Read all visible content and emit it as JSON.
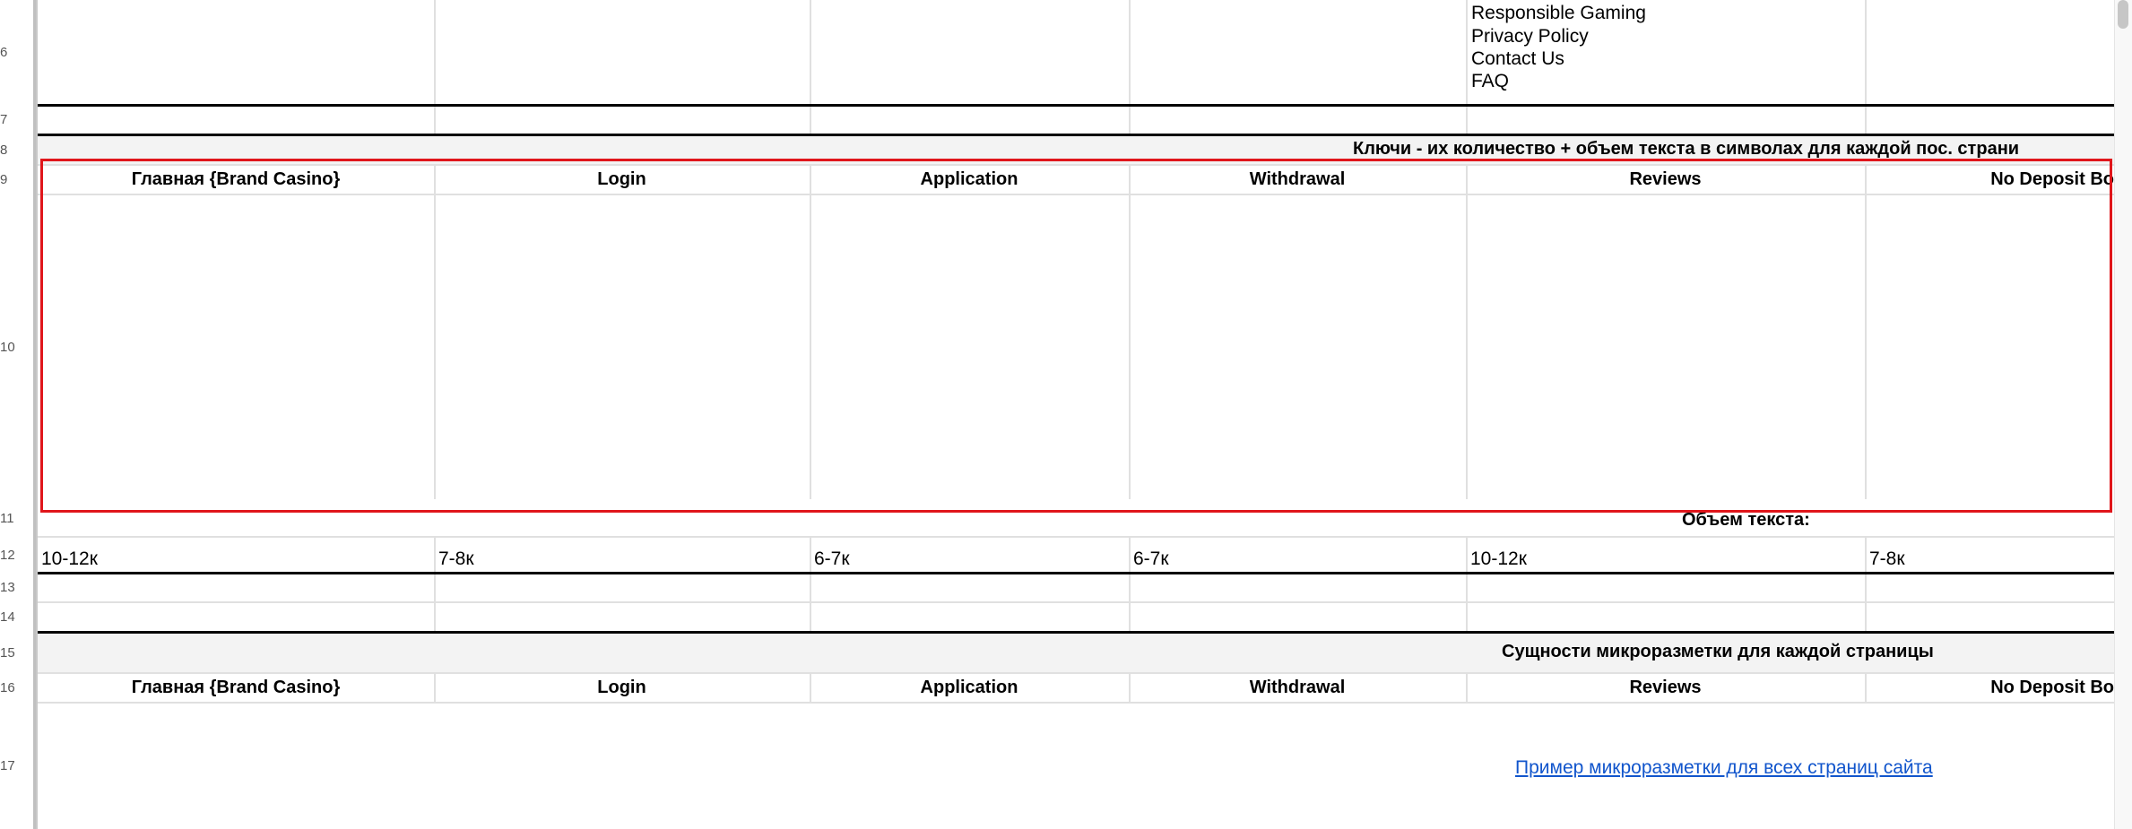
{
  "row_numbers": [
    "6",
    "7",
    "8",
    "9",
    "10",
    "11",
    "12",
    "13",
    "14",
    "15",
    "16",
    "17"
  ],
  "footer_links": [
    "Responsible Gaming",
    "Privacy Policy",
    "Contact Us",
    "FAQ"
  ],
  "section_keys_title": "Ключи - их количество  + объем текста в символах для каждой пос. страни",
  "pages": [
    "Главная {Brand Casino}",
    "Login",
    "Application",
    "Withdrawal",
    "Reviews",
    "No Deposit Bo"
  ],
  "text_volume_label": "Объем текста:",
  "text_volumes": [
    "10-12к",
    "7-8к",
    "6-7к",
    "6-7к",
    "10-12к",
    "7-8к"
  ],
  "section_markup_title": "Сущности микроразметки для каждой страницы",
  "markup_example_link": "Пример микроразметки для всех страниц сайта",
  "colors": {
    "selection": "#e0161b",
    "link": "#1155cc",
    "section_bg": "#f3f3f3"
  }
}
